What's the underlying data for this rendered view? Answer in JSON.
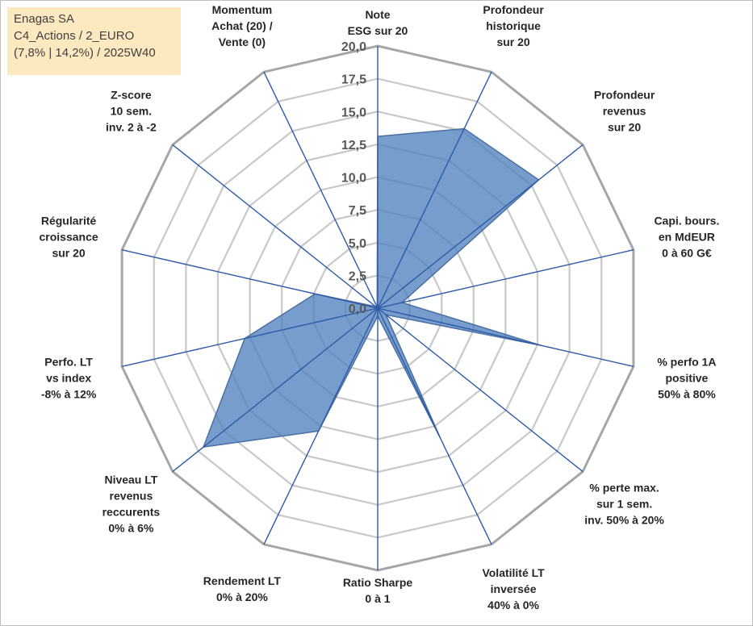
{
  "info_box": {
    "line1": "Enagas SA",
    "line2": "C4_Actions / 2_EURO",
    "line3": "(7,8% | 14,2%) / 2025W40"
  },
  "chart_data": {
    "type": "radar",
    "title": "Enagas SA",
    "rmin": 0,
    "rmax": 20,
    "tick_values": [
      0,
      2.5,
      5,
      7.5,
      10,
      12.5,
      15,
      17.5,
      20
    ],
    "tick_labels": [
      "0,0",
      "2,5",
      "5,0",
      "7,5",
      "10,0",
      "12,5",
      "15,0",
      "17,5",
      "20,0"
    ],
    "axes": [
      {
        "label": [
          "Note",
          "ESG sur 20"
        ],
        "value": 13.1
      },
      {
        "label": [
          "Profondeur",
          "historique",
          "sur 20"
        ],
        "value": 15.2
      },
      {
        "label": [
          "Profondeur",
          "revenus",
          "sur 20"
        ],
        "value": 15.7
      },
      {
        "label": [
          "Capi. bours.",
          "en MdEUR",
          "0 à 60 G€"
        ],
        "value": 1.9
      },
      {
        "label": [
          "% perfo 1A",
          "positive",
          "50% à 80%"
        ],
        "value": 12.8
      },
      {
        "label": [
          "% perte max.",
          "sur 1 sem.",
          "inv. 50% à 20%"
        ],
        "value": 0.8
      },
      {
        "label": [
          "Volatilité LT",
          "inversée",
          "40% à 0%"
        ],
        "value": 11.0
      },
      {
        "label": [
          "Ratio Sharpe",
          "0 à 1"
        ],
        "value": 0.6
      },
      {
        "label": [
          "Rendement LT",
          "0% à 20%"
        ],
        "value": 10.4
      },
      {
        "label": [
          "Niveau LT",
          "revenus",
          "reccurents",
          "0% à 6%"
        ],
        "value": 17.0
      },
      {
        "label": [
          "Perfo. LT",
          "vs index",
          "-8% à 12%"
        ],
        "value": 10.4
      },
      {
        "label": [
          "Régularité",
          "croissance",
          "sur 20"
        ],
        "value": 4.9
      },
      {
        "label": [
          "Z-score",
          "10 sem.",
          "inv. 2 à -2"
        ],
        "value": 0.2
      },
      {
        "label": [
          "Momentum",
          "Achat (20) /",
          "Vente (0)"
        ],
        "value": 0.1
      }
    ],
    "series": [
      {
        "name": "Enagas SA",
        "color": "#4f81bd"
      }
    ],
    "colors": {
      "fill": "#4f81bd",
      "stroke": "#4a6fa5",
      "spoke": "#2e5aa8",
      "grid": "#c8c8c8",
      "outer": "#a6a6a6"
    }
  }
}
